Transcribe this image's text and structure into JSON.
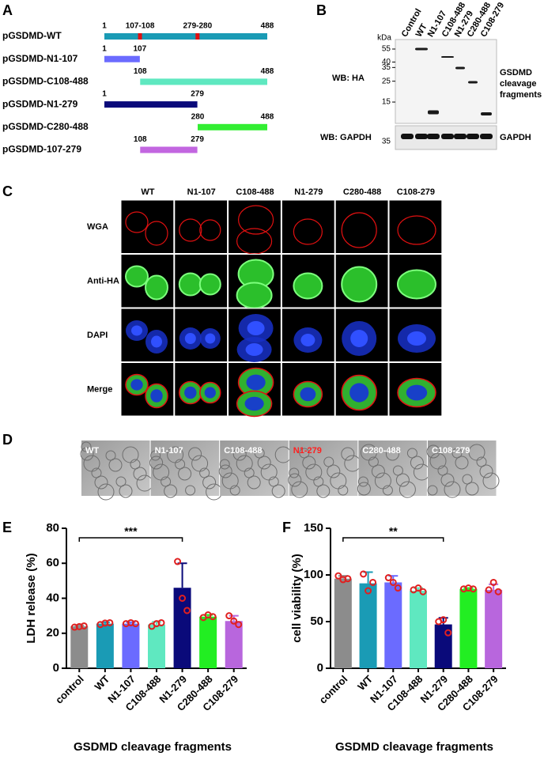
{
  "panel_labels": [
    "A",
    "B",
    "C",
    "D",
    "E",
    "F"
  ],
  "constructs": [
    {
      "name": "pGSDMD-WT",
      "start": 1,
      "end": 488,
      "color": "#1a9bb5",
      "sites": [
        {
          "label": "107-108",
          "start": 107,
          "end": 108
        },
        {
          "label": "279-280",
          "start": 279,
          "end": 280
        }
      ]
    },
    {
      "name": "pGSDMD-N1-107",
      "start": 1,
      "end": 107,
      "color": "#6b6bff"
    },
    {
      "name": "pGSDMD-C108-488",
      "start": 108,
      "end": 488,
      "color": "#5fe8c0"
    },
    {
      "name": "pGSDMD-N1-279",
      "start": 1,
      "end": 279,
      "color": "#0a0a7a"
    },
    {
      "name": "pGSDMD-C280-488",
      "start": 280,
      "end": 488,
      "color": "#33ee33"
    },
    {
      "name": "pGSDMD-107-279",
      "start": 108,
      "end": 279,
      "color": "#c266e0"
    }
  ],
  "western_blot": {
    "lanes": [
      "Control",
      "WT",
      "N1-107",
      "C108-488",
      "N1-279",
      "C280-488",
      "C108-279"
    ],
    "unit": "kDa",
    "markers": [
      55,
      40,
      35,
      25,
      15
    ],
    "gapdh_marker": 35,
    "rows": [
      "WB: HA",
      "WB: GAPDH"
    ],
    "right_labels": [
      [
        "GSDMD",
        "cleavage",
        "fragments"
      ],
      "GAPDH"
    ]
  },
  "microscopy": {
    "columns": [
      "WT",
      "N1-107",
      "C108-488",
      "N1-279",
      "C280-488",
      "C108-279"
    ],
    "rows": [
      "WGA",
      "Anti-HA",
      "DAPI",
      "Merge"
    ]
  },
  "brightfield": {
    "labels": [
      {
        "text": "WT",
        "color": "#ffffff"
      },
      {
        "text": "N1-107",
        "color": "#ffffff"
      },
      {
        "text": "C108-488",
        "color": "#ffffff"
      },
      {
        "text": "N1-279",
        "color": "#ff2020"
      },
      {
        "text": "C280-488",
        "color": "#ffffff"
      },
      {
        "text": "C108-279",
        "color": "#ffffff"
      }
    ]
  },
  "chart_data": [
    {
      "type": "bar",
      "y_label": "LDH release (%)",
      "x_label": "GSDMD cleavage fragments",
      "categories": [
        "control",
        "WT",
        "N1-107",
        "C108-488",
        "N1-279",
        "C280-488",
        "C108-279"
      ],
      "values": [
        24,
        25.5,
        25.5,
        25,
        46,
        29.5,
        27
      ],
      "errors": [
        0.5,
        0.8,
        0.8,
        1.5,
        14,
        1,
        3
      ],
      "points": [
        [
          23.5,
          23.8,
          24.2
        ],
        [
          25,
          25.8,
          26
        ],
        [
          25.5,
          26,
          25.5
        ],
        [
          24,
          25.5,
          26
        ],
        [
          61,
          40,
          33
        ],
        [
          29,
          30.5,
          29.5
        ],
        [
          30,
          27,
          25
        ]
      ],
      "colors": [
        "#8c8c8c",
        "#1a9bb5",
        "#6b6bff",
        "#5fe8c0",
        "#0a0a7a",
        "#22ee22",
        "#b866dd"
      ],
      "point_color": "#e02020",
      "ylim": [
        0,
        80
      ],
      "yticks": [
        0,
        20,
        40,
        60,
        80
      ],
      "annotation": {
        "text": "***",
        "categories": [
          "control",
          "N1-279"
        ]
      }
    },
    {
      "type": "bar",
      "y_label": "cell viability (%)",
      "x_label": "GSDMD cleavage fragments",
      "categories": [
        "control",
        "WT",
        "N1-107",
        "C108-488",
        "N1-279",
        "C280-488",
        "C108-279"
      ],
      "values": [
        96,
        91,
        92,
        83,
        47,
        85,
        84
      ],
      "errors": [
        3,
        12,
        7,
        3,
        7,
        1,
        6
      ],
      "points": [
        [
          99,
          95,
          96
        ],
        [
          101,
          83,
          92
        ],
        [
          97,
          92,
          86
        ],
        [
          84,
          86,
          82
        ],
        [
          50,
          52,
          38
        ],
        [
          85,
          86,
          85
        ],
        [
          84,
          92,
          82
        ]
      ],
      "colors": [
        "#8c8c8c",
        "#1a9bb5",
        "#6b6bff",
        "#5fe8c0",
        "#0a0a7a",
        "#22ee22",
        "#b866dd"
      ],
      "point_color": "#e02020",
      "ylim": [
        0,
        150
      ],
      "yticks": [
        0,
        50,
        100,
        150
      ],
      "annotation": {
        "text": "**",
        "categories": [
          "control",
          "N1-279"
        ]
      }
    }
  ]
}
